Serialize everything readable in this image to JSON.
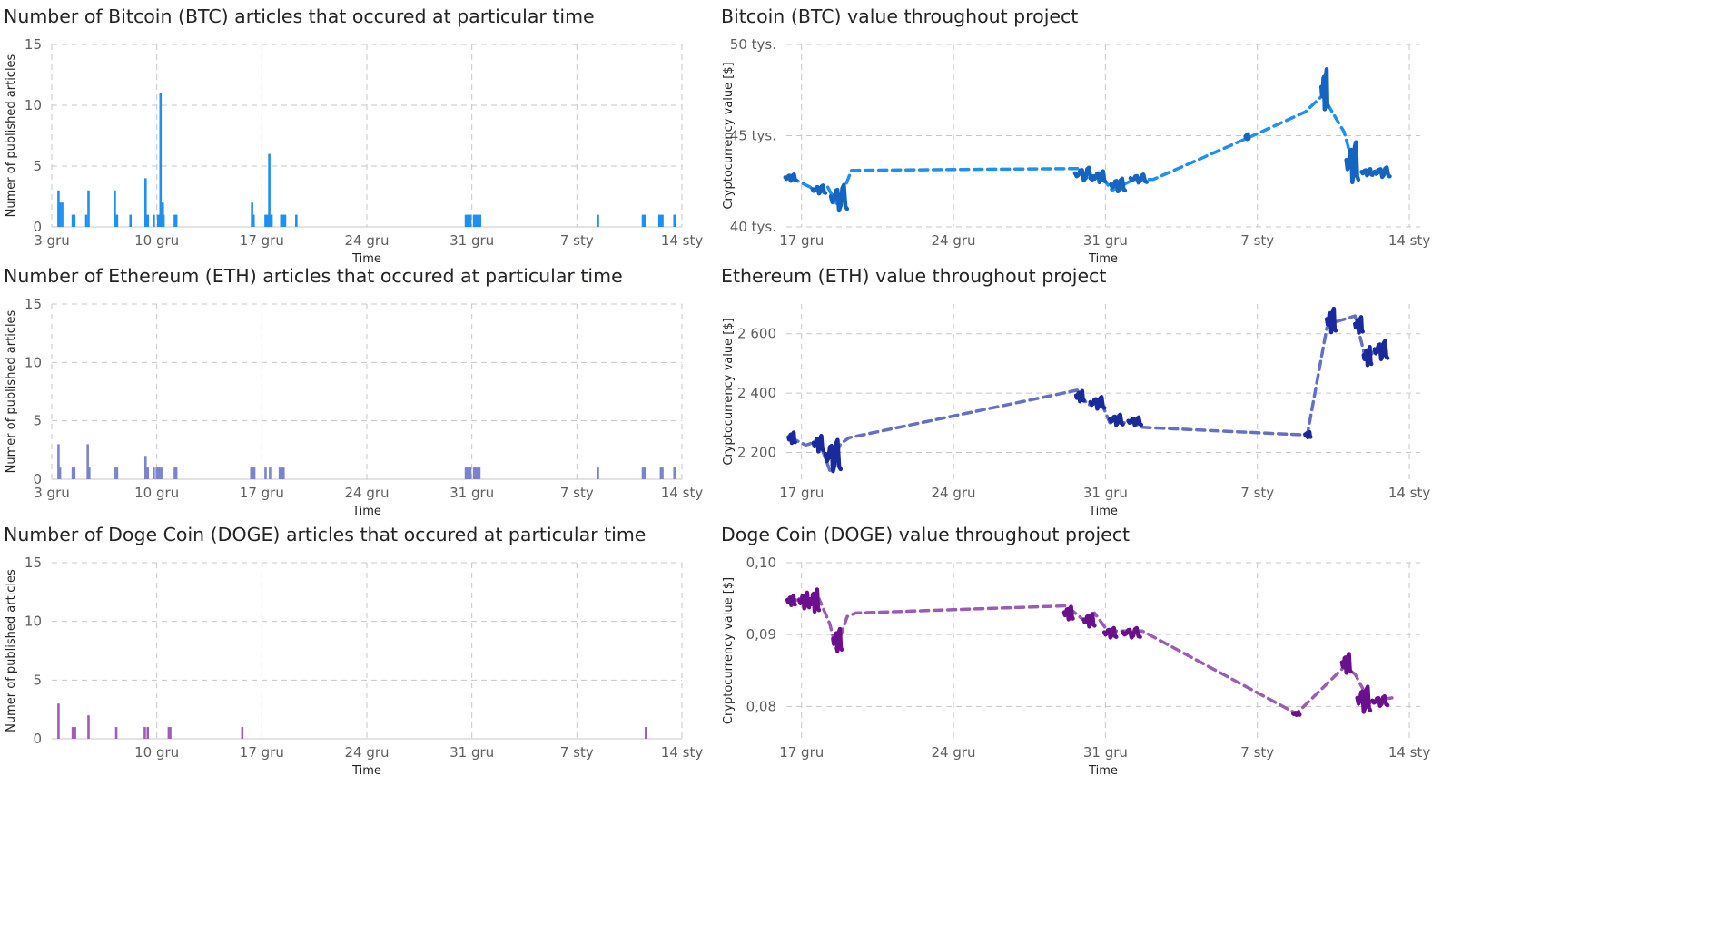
{
  "palette": {
    "btc": "#1f8ff0",
    "btc_dark": "#1565c0",
    "eth": "#7b83cd",
    "eth_line": "#6570c4",
    "eth_dark": "#1a2a9c",
    "doge": "#a05db8",
    "doge_line": "#9a5cb4",
    "doge_dark": "#6a0f8e"
  },
  "chart_data": [
    {
      "id": "btc_articles",
      "type": "bar",
      "title": "Number of Bitcoin (BTC) articles that occured at particular time",
      "xlabel": "Time",
      "ylabel": "Numer of published articles",
      "x_ticks": [
        "3 gru",
        "10 gru",
        "17 gru",
        "24 gru",
        "31 gru",
        "7 sty",
        "14 sty"
      ],
      "x_tick_days": [
        0,
        7,
        14,
        21,
        28,
        35,
        42
      ],
      "ylim": [
        0,
        15
      ],
      "y_ticks": [
        "0",
        "5",
        "10",
        "15"
      ],
      "y_tick_values": [
        0,
        5,
        10,
        15
      ],
      "grid": true,
      "color_key": "btc",
      "bars": [
        [
          0.45,
          3
        ],
        [
          0.55,
          2
        ],
        [
          0.7,
          2
        ],
        [
          1.4,
          1
        ],
        [
          1.5,
          1
        ],
        [
          2.3,
          1
        ],
        [
          2.45,
          3
        ],
        [
          4.2,
          3
        ],
        [
          4.35,
          1
        ],
        [
          5.25,
          1
        ],
        [
          6.25,
          4
        ],
        [
          6.4,
          1
        ],
        [
          6.8,
          1
        ],
        [
          7.1,
          1
        ],
        [
          7.25,
          11
        ],
        [
          7.35,
          1
        ],
        [
          7.4,
          2
        ],
        [
          7.45,
          1
        ],
        [
          8.2,
          1
        ],
        [
          8.3,
          1
        ],
        [
          13.35,
          2
        ],
        [
          13.45,
          1
        ],
        [
          14.25,
          1
        ],
        [
          14.35,
          1
        ],
        [
          14.45,
          1
        ],
        [
          14.5,
          6
        ],
        [
          14.6,
          1
        ],
        [
          14.65,
          1
        ],
        [
          15.3,
          1
        ],
        [
          15.35,
          1
        ],
        [
          15.45,
          1
        ],
        [
          15.55,
          1
        ],
        [
          16.3,
          1
        ],
        [
          27.6,
          1
        ],
        [
          27.7,
          1
        ],
        [
          27.8,
          1
        ],
        [
          27.9,
          1
        ],
        [
          28.15,
          1
        ],
        [
          28.25,
          1
        ],
        [
          28.35,
          1
        ],
        [
          28.45,
          1
        ],
        [
          28.55,
          1
        ],
        [
          36.4,
          1
        ],
        [
          39.4,
          1
        ],
        [
          39.5,
          1
        ],
        [
          40.5,
          1
        ],
        [
          40.6,
          1
        ],
        [
          40.7,
          1
        ],
        [
          41.5,
          1
        ]
      ]
    },
    {
      "id": "btc_value",
      "type": "line",
      "title": "Bitcoin (BTC) value throughout project",
      "xlabel": "Time",
      "ylabel": "Cryptocurrency value [$]",
      "x_ticks": [
        "17 gru",
        "24 gru",
        "31 gru",
        "7 sty",
        "14 sty"
      ],
      "x_tick_days": [
        14,
        21,
        28,
        35,
        42
      ],
      "ylim": [
        40000,
        50000
      ],
      "y_ticks": [
        "40 tys.",
        "45 tys.",
        "50 tys."
      ],
      "y_tick_values": [
        40000,
        45000,
        50000
      ],
      "grid": true,
      "color_key": "btc",
      "dark_key": "btc_dark",
      "x_range": [
        13.3,
        42.5
      ],
      "trend": [
        [
          13.5,
          42700
        ],
        [
          14.2,
          42300
        ],
        [
          14.7,
          42000
        ],
        [
          15.2,
          42200
        ],
        [
          15.6,
          41300
        ],
        [
          15.9,
          41900
        ],
        [
          16.3,
          43100
        ],
        [
          26.8,
          43200
        ],
        [
          27.2,
          42600
        ],
        [
          27.8,
          42800
        ],
        [
          28.3,
          42000
        ],
        [
          28.8,
          42300
        ],
        [
          29.3,
          42600
        ],
        [
          30.2,
          42600
        ],
        [
          34.6,
          44900
        ],
        [
          37.2,
          46300
        ],
        [
          38.0,
          47200
        ],
        [
          39.0,
          45200
        ],
        [
          39.5,
          43000
        ],
        [
          40.4,
          43100
        ],
        [
          40.9,
          43000
        ]
      ],
      "clusters": [
        [
          13.25,
          13.75,
          42500,
          42900
        ],
        [
          14.5,
          15.1,
          41800,
          42300
        ],
        [
          15.35,
          16.1,
          40800,
          42400
        ],
        [
          26.6,
          27.4,
          42500,
          43300
        ],
        [
          27.45,
          28.0,
          42400,
          43100
        ],
        [
          28.25,
          28.9,
          41900,
          42700
        ],
        [
          29.15,
          29.9,
          42400,
          42900
        ],
        [
          34.45,
          34.6,
          44800,
          45100
        ],
        [
          37.95,
          38.25,
          46300,
          48800
        ],
        [
          39.1,
          39.65,
          42300,
          44800
        ],
        [
          39.8,
          40.3,
          42800,
          43200
        ],
        [
          40.4,
          41.1,
          42700,
          43300
        ]
      ]
    },
    {
      "id": "eth_articles",
      "type": "bar",
      "title": "Number of Ethereum (ETH) articles that occured at particular time",
      "xlabel": "Time",
      "ylabel": "Numer of published articles",
      "x_ticks": [
        "3 gru",
        "10 gru",
        "17 gru",
        "24 gru",
        "31 gru",
        "7 sty",
        "14 sty"
      ],
      "x_tick_days": [
        0,
        7,
        14,
        21,
        28,
        35,
        42
      ],
      "ylim": [
        0,
        15
      ],
      "y_ticks": [
        "0",
        "5",
        "10",
        "15"
      ],
      "y_tick_values": [
        0,
        5,
        10,
        15
      ],
      "grid": true,
      "color_key": "eth",
      "bars": [
        [
          0.45,
          3
        ],
        [
          0.55,
          1
        ],
        [
          1.4,
          1
        ],
        [
          1.5,
          1
        ],
        [
          2.4,
          3
        ],
        [
          2.5,
          1
        ],
        [
          4.2,
          1
        ],
        [
          4.35,
          1
        ],
        [
          6.25,
          2
        ],
        [
          6.4,
          1
        ],
        [
          6.8,
          1
        ],
        [
          7.0,
          1
        ],
        [
          7.15,
          1
        ],
        [
          7.3,
          1
        ],
        [
          8.2,
          1
        ],
        [
          8.3,
          1
        ],
        [
          13.3,
          1
        ],
        [
          13.4,
          1
        ],
        [
          13.5,
          1
        ],
        [
          14.25,
          1
        ],
        [
          14.55,
          1
        ],
        [
          15.2,
          1
        ],
        [
          15.35,
          1
        ],
        [
          15.45,
          1
        ],
        [
          27.6,
          1
        ],
        [
          27.7,
          1
        ],
        [
          27.8,
          1
        ],
        [
          27.9,
          1
        ],
        [
          28.15,
          1
        ],
        [
          28.25,
          1
        ],
        [
          28.4,
          1
        ],
        [
          28.5,
          1
        ],
        [
          36.4,
          1
        ],
        [
          39.4,
          1
        ],
        [
          39.5,
          1
        ],
        [
          40.6,
          1
        ],
        [
          40.7,
          1
        ],
        [
          41.5,
          1
        ]
      ]
    },
    {
      "id": "eth_value",
      "type": "line",
      "title": "Ethereum (ETH) value throughout project",
      "xlabel": "Time",
      "ylabel": "Cryptocurrency value [$]",
      "x_ticks": [
        "17 gru",
        "24 gru",
        "31 gru",
        "7 sty",
        "14 sty"
      ],
      "x_tick_days": [
        14,
        21,
        28,
        35,
        42
      ],
      "ylim": [
        2110,
        2700
      ],
      "y_ticks": [
        "2 200",
        "2 400",
        "2 600"
      ],
      "y_tick_values": [
        2200,
        2400,
        2600
      ],
      "grid": true,
      "color_key": "eth_line",
      "dark_key": "eth_dark",
      "x_range": [
        13.3,
        42.5
      ],
      "trend": [
        [
          13.5,
          2250
        ],
        [
          14.2,
          2225
        ],
        [
          14.8,
          2240
        ],
        [
          15.3,
          2140
        ],
        [
          15.8,
          2230
        ],
        [
          16.2,
          2250
        ],
        [
          26.7,
          2410
        ],
        [
          27.2,
          2360
        ],
        [
          27.8,
          2370
        ],
        [
          28.2,
          2300
        ],
        [
          28.8,
          2300
        ],
        [
          29.3,
          2300
        ],
        [
          29.7,
          2285
        ],
        [
          36.9,
          2260
        ],
        [
          37.3,
          2260
        ],
        [
          38.2,
          2620
        ],
        [
          38.6,
          2640
        ],
        [
          39.5,
          2660
        ],
        [
          40.0,
          2510
        ],
        [
          40.6,
          2560
        ],
        [
          41.0,
          2570
        ]
      ],
      "clusters": [
        [
          13.4,
          13.7,
          2230,
          2270
        ],
        [
          14.55,
          15.0,
          2200,
          2260
        ],
        [
          15.1,
          15.8,
          2130,
          2250
        ],
        [
          26.65,
          27.0,
          2370,
          2410
        ],
        [
          27.3,
          27.95,
          2345,
          2390
        ],
        [
          28.2,
          28.8,
          2290,
          2330
        ],
        [
          29.05,
          29.65,
          2290,
          2320
        ],
        [
          37.2,
          37.45,
          2250,
          2270
        ],
        [
          38.2,
          38.6,
          2600,
          2690
        ],
        [
          39.5,
          39.85,
          2600,
          2660
        ],
        [
          39.9,
          40.25,
          2490,
          2560
        ],
        [
          40.4,
          41.0,
          2510,
          2580
        ]
      ]
    },
    {
      "id": "doge_articles",
      "type": "bar",
      "title": "Number of Doge Coin (DOGE) articles that occured at particular time",
      "xlabel": "Time",
      "ylabel": "Numer of published articles",
      "x_ticks": [
        "10 gru",
        "17 gru",
        "24 gru",
        "31 gru",
        "7 sty",
        "14 sty"
      ],
      "x_tick_days": [
        7,
        14,
        21,
        28,
        35,
        42
      ],
      "ylim": [
        0,
        15
      ],
      "y_ticks": [
        "0",
        "5",
        "10",
        "15"
      ],
      "y_tick_values": [
        0,
        5,
        10,
        15
      ],
      "grid": true,
      "color_key": "doge",
      "bars": [
        [
          0.45,
          3
        ],
        [
          1.4,
          1
        ],
        [
          1.55,
          1
        ],
        [
          2.45,
          2
        ],
        [
          4.3,
          1
        ],
        [
          6.2,
          1
        ],
        [
          6.4,
          1
        ],
        [
          7.8,
          1
        ],
        [
          7.9,
          1
        ],
        [
          12.7,
          1
        ],
        [
          39.6,
          1
        ]
      ]
    },
    {
      "id": "doge_value",
      "type": "line",
      "title": "Doge Coin (DOGE) value throughout project",
      "xlabel": "Time",
      "ylabel": "Cryptocurrency value [$]",
      "x_ticks": [
        "17 gru",
        "24 gru",
        "31 gru",
        "7 sty",
        "14 sty"
      ],
      "x_tick_days": [
        14,
        21,
        28,
        35,
        42
      ],
      "ylim": [
        0.0755,
        0.1
      ],
      "y_ticks": [
        "0,08",
        "0,09",
        "0,10"
      ],
      "y_tick_values": [
        0.08,
        0.09,
        0.1
      ],
      "grid": true,
      "color_key": "doge_line",
      "dark_key": "doge_dark",
      "x_range": [
        13.3,
        42.5
      ],
      "trend": [
        [
          13.5,
          0.095
        ],
        [
          14.2,
          0.0945
        ],
        [
          14.8,
          0.095
        ],
        [
          15.3,
          0.0915
        ],
        [
          15.6,
          0.088
        ],
        [
          16.1,
          0.0925
        ],
        [
          16.5,
          0.093
        ],
        [
          26.2,
          0.094
        ],
        [
          27.0,
          0.092
        ],
        [
          27.5,
          0.093
        ],
        [
          28.1,
          0.0905
        ],
        [
          28.8,
          0.0905
        ],
        [
          29.7,
          0.0905
        ],
        [
          36.8,
          0.079
        ],
        [
          39.0,
          0.0855
        ],
        [
          39.5,
          0.0845
        ],
        [
          40.2,
          0.0805
        ],
        [
          40.8,
          0.081
        ],
        [
          41.2,
          0.0812
        ]
      ],
      "clusters": [
        [
          13.35,
          13.7,
          0.094,
          0.0955
        ],
        [
          13.9,
          14.35,
          0.0935,
          0.096
        ],
        [
          14.4,
          14.8,
          0.093,
          0.0965
        ],
        [
          15.45,
          15.85,
          0.0875,
          0.091
        ],
        [
          26.1,
          26.5,
          0.092,
          0.094
        ],
        [
          27.0,
          27.5,
          0.091,
          0.093
        ],
        [
          27.95,
          28.5,
          0.0895,
          0.091
        ],
        [
          28.8,
          29.6,
          0.0895,
          0.091
        ],
        [
          36.65,
          36.95,
          0.0788,
          0.0792
        ],
        [
          38.9,
          39.3,
          0.0845,
          0.0875
        ],
        [
          39.6,
          40.2,
          0.079,
          0.083
        ],
        [
          40.3,
          41.0,
          0.08,
          0.0815
        ]
      ]
    }
  ]
}
